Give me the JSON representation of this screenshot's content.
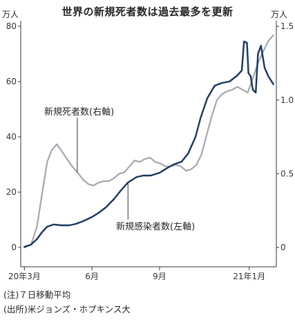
{
  "header": {
    "title": "世界の新規死者数は過去最多を更新",
    "left_unit": "万人",
    "right_unit": "万人"
  },
  "chart_data": {
    "type": "line",
    "title": "世界の新規死者数は過去最多を更新",
    "x_ticks": [
      "20年3月",
      "6月",
      "9月",
      "21年1月"
    ],
    "x_tick_dates": [
      "2020-03-01",
      "2020-06-01",
      "2020-09-01",
      "2021-01-01"
    ],
    "x_range": [
      "2020-02-25",
      "2021-02-07"
    ],
    "left_axis": {
      "unit": "万人",
      "ticks": [
        0,
        20,
        40,
        60,
        80
      ],
      "range": [
        -7,
        82
      ]
    },
    "right_axis": {
      "unit": "万人",
      "ticks": [
        "0",
        "0.5",
        "1.0",
        "1.5"
      ],
      "tick_values": [
        0,
        0.5,
        1.0,
        1.5
      ],
      "range": [
        -0.131,
        1.538
      ]
    },
    "series": [
      {
        "name": "新規死者数(右軸)",
        "axis": "right",
        "color": "#a3a6ae",
        "points": [
          [
            "2020-03-01",
            0.0
          ],
          [
            "2020-03-10",
            0.02
          ],
          [
            "2020-03-18",
            0.14
          ],
          [
            "2020-03-25",
            0.36
          ],
          [
            "2020-04-01",
            0.58
          ],
          [
            "2020-04-07",
            0.66
          ],
          [
            "2020-04-14",
            0.7
          ],
          [
            "2020-04-20",
            0.66
          ],
          [
            "2020-04-28",
            0.6
          ],
          [
            "2020-05-05",
            0.55
          ],
          [
            "2020-05-12",
            0.51
          ],
          [
            "2020-05-20",
            0.46
          ],
          [
            "2020-05-27",
            0.43
          ],
          [
            "2020-06-03",
            0.42
          ],
          [
            "2020-06-10",
            0.44
          ],
          [
            "2020-06-17",
            0.45
          ],
          [
            "2020-06-24",
            0.45
          ],
          [
            "2020-07-01",
            0.47
          ],
          [
            "2020-07-08",
            0.5
          ],
          [
            "2020-07-15",
            0.51
          ],
          [
            "2020-07-22",
            0.55
          ],
          [
            "2020-07-29",
            0.59
          ],
          [
            "2020-08-05",
            0.58
          ],
          [
            "2020-08-12",
            0.6
          ],
          [
            "2020-08-19",
            0.61
          ],
          [
            "2020-08-26",
            0.58
          ],
          [
            "2020-09-02",
            0.57
          ],
          [
            "2020-09-09",
            0.55
          ],
          [
            "2020-09-16",
            0.55
          ],
          [
            "2020-09-23",
            0.56
          ],
          [
            "2020-09-30",
            0.55
          ],
          [
            "2020-10-07",
            0.52
          ],
          [
            "2020-10-14",
            0.53
          ],
          [
            "2020-10-21",
            0.56
          ],
          [
            "2020-10-28",
            0.63
          ],
          [
            "2020-11-04",
            0.76
          ],
          [
            "2020-11-11",
            0.89
          ],
          [
            "2020-11-18",
            1.0
          ],
          [
            "2020-11-25",
            1.04
          ],
          [
            "2020-12-02",
            1.06
          ],
          [
            "2020-12-09",
            1.07
          ],
          [
            "2020-12-16",
            1.09
          ],
          [
            "2020-12-23",
            1.07
          ],
          [
            "2020-12-30",
            1.05
          ],
          [
            "2021-01-06",
            1.15
          ],
          [
            "2021-01-13",
            1.25
          ],
          [
            "2021-01-20",
            1.33
          ],
          [
            "2021-01-27",
            1.4
          ],
          [
            "2021-02-03",
            1.44
          ]
        ]
      },
      {
        "name": "新規感染者数(左軸)",
        "axis": "left",
        "color": "#17355e",
        "points": [
          [
            "2020-03-01",
            0.2
          ],
          [
            "2020-03-10",
            1.0
          ],
          [
            "2020-03-18",
            3.0
          ],
          [
            "2020-03-25",
            5.5
          ],
          [
            "2020-04-01",
            7.5
          ],
          [
            "2020-04-10",
            8.3
          ],
          [
            "2020-04-20",
            8.0
          ],
          [
            "2020-05-01",
            8.0
          ],
          [
            "2020-05-10",
            8.5
          ],
          [
            "2020-05-20",
            9.5
          ],
          [
            "2020-06-01",
            11.0
          ],
          [
            "2020-06-10",
            12.5
          ],
          [
            "2020-06-20",
            14.5
          ],
          [
            "2020-07-01",
            17.5
          ],
          [
            "2020-07-10",
            20.5
          ],
          [
            "2020-07-20",
            23.5
          ],
          [
            "2020-08-01",
            25.5
          ],
          [
            "2020-08-10",
            26.0
          ],
          [
            "2020-08-20",
            26.0
          ],
          [
            "2020-09-01",
            27.0
          ],
          [
            "2020-09-10",
            28.5
          ],
          [
            "2020-09-20",
            30.0
          ],
          [
            "2020-10-01",
            31.0
          ],
          [
            "2020-10-10",
            34.0
          ],
          [
            "2020-10-20",
            40.0
          ],
          [
            "2020-10-27",
            47.0
          ],
          [
            "2020-11-05",
            54.0
          ],
          [
            "2020-11-15",
            58.5
          ],
          [
            "2020-11-25",
            59.5
          ],
          [
            "2020-12-05",
            60.0
          ],
          [
            "2020-12-15",
            62.0
          ],
          [
            "2020-12-22",
            64.0
          ],
          [
            "2020-12-25",
            74.5
          ],
          [
            "2020-12-29",
            74.0
          ],
          [
            "2020-12-31",
            63.0
          ],
          [
            "2021-01-03",
            62.0
          ],
          [
            "2021-01-06",
            57.0
          ],
          [
            "2021-01-10",
            56.0
          ],
          [
            "2021-01-13",
            70.0
          ],
          [
            "2021-01-17",
            73.0
          ],
          [
            "2021-01-22",
            65.0
          ],
          [
            "2021-01-27",
            62.0
          ],
          [
            "2021-02-03",
            59.0
          ]
        ]
      }
    ],
    "annotations": [
      {
        "text": "新規死者数(右軸)",
        "series": "新規死者数(右軸)"
      },
      {
        "text": "新規感染者数(左軸)",
        "series": "新規感染者数(左軸)"
      }
    ],
    "grid": false
  },
  "footer": {
    "note": "(注)７日移動平均",
    "source": "(出所)米ジョンズ・ホプキンス大"
  }
}
